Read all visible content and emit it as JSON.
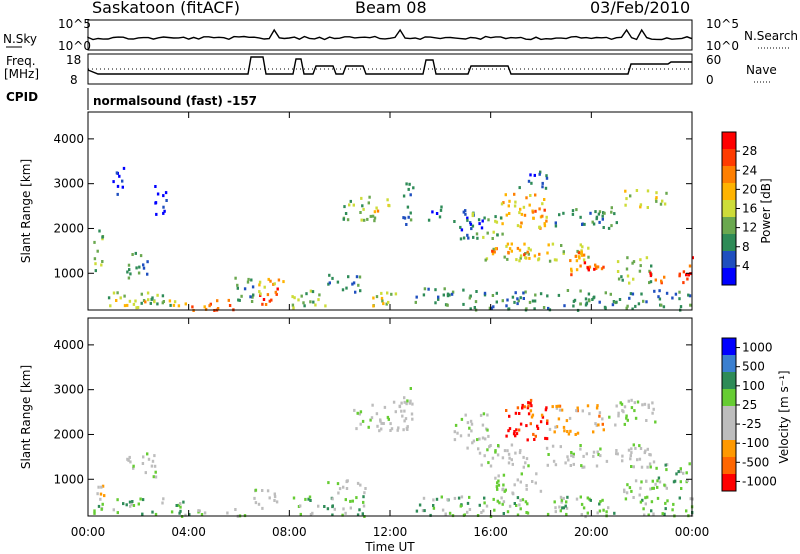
{
  "header": {
    "station": "Saskatoon (fitACF)",
    "beam": "Beam 08",
    "date": "03/Feb/2010"
  },
  "panels": {
    "nsky": {
      "left_label": "N.Sky",
      "right_label": "N.Search",
      "left_ticks": [
        "10^5",
        "10^0"
      ],
      "right_ticks": [
        "10^5",
        "10^0"
      ]
    },
    "freq": {
      "left_label_line1": "Freq.",
      "left_label_line2": "[MHz]",
      "right_label": "Nave",
      "left_ticks": [
        "18",
        "8"
      ],
      "right_ticks": [
        "60",
        "0"
      ]
    },
    "cpid": {
      "label": "CPID",
      "value": "normalsound (fast) -157"
    }
  },
  "colors": {
    "power_scale": [
      "#0000ff",
      "#1f4fbf",
      "#2e8b57",
      "#6aa84f",
      "#cddc39",
      "#ffb300",
      "#ff7f00",
      "#ff3b00",
      "#ff0000"
    ],
    "velocity_scale": [
      "#0000ff",
      "#3a7fd0",
      "#2e8b57",
      "#66cc33",
      "#bdbdbd",
      "#bdbdbd",
      "#ff9900",
      "#ff6600",
      "#ff0000"
    ]
  },
  "chart_data": [
    {
      "type": "heatmap",
      "name": "power",
      "xlabel": "Time UT",
      "ylabel": "Slant Range [km]",
      "x_ticks": [
        "00:00",
        "04:00",
        "08:00",
        "12:00",
        "16:00",
        "20:00",
        "00:00"
      ],
      "xlim": [
        0,
        24
      ],
      "y_ticks": [
        1000,
        2000,
        3000,
        4000
      ],
      "ylim": [
        180,
        4600
      ],
      "colorbar": {
        "label": "Power [dB]",
        "ticks": [
          4,
          8,
          12,
          16,
          20,
          24,
          28
        ]
      },
      "regions": [
        {
          "t0": 0.2,
          "t1": 0.6,
          "r0": 1000,
          "r1": 2100,
          "color": 3
        },
        {
          "t0": 0.7,
          "t1": 3.5,
          "r0": 250,
          "r1": 600,
          "color": 3
        },
        {
          "t0": 1.0,
          "t1": 3.8,
          "r0": 300,
          "r1": 450,
          "color": 5
        },
        {
          "t0": 1.5,
          "t1": 2.5,
          "r0": 900,
          "r1": 1500,
          "color": 2
        },
        {
          "t0": 0.9,
          "t1": 1.4,
          "r0": 2700,
          "r1": 3400,
          "color": 0
        },
        {
          "t0": 2.5,
          "t1": 3.1,
          "r0": 2300,
          "r1": 3000,
          "color": 0
        },
        {
          "t0": 3.8,
          "t1": 6.0,
          "r0": 200,
          "r1": 450,
          "color": 6
        },
        {
          "t0": 5.8,
          "t1": 6.6,
          "r0": 300,
          "r1": 1000,
          "color": 2
        },
        {
          "t0": 6.7,
          "t1": 7.5,
          "r0": 200,
          "r1": 700,
          "color": 7
        },
        {
          "t0": 6.3,
          "t1": 7.0,
          "r0": 500,
          "r1": 850,
          "color": 4
        },
        {
          "t0": 7.0,
          "t1": 7.8,
          "r0": 700,
          "r1": 900,
          "color": 5
        },
        {
          "t0": 8.0,
          "t1": 9.5,
          "r0": 200,
          "r1": 650,
          "color": 3
        },
        {
          "t0": 9.5,
          "t1": 11.0,
          "r0": 600,
          "r1": 1000,
          "color": 2
        },
        {
          "t0": 10.1,
          "t1": 11.5,
          "r0": 2200,
          "r1": 2800,
          "color": 3
        },
        {
          "t0": 11.3,
          "t1": 12.0,
          "r0": 2400,
          "r1": 2700,
          "color": 5
        },
        {
          "t0": 11.0,
          "t1": 12.5,
          "r0": 250,
          "r1": 600,
          "color": 4
        },
        {
          "t0": 12.4,
          "t1": 12.9,
          "r0": 2100,
          "r1": 3100,
          "color": 2
        },
        {
          "t0": 13.5,
          "t1": 14.0,
          "r0": 2200,
          "r1": 2600,
          "color": 1
        },
        {
          "t0": 12.9,
          "t1": 15.0,
          "r0": 300,
          "r1": 700,
          "color": 2
        },
        {
          "t0": 14.5,
          "t1": 15.7,
          "r0": 1800,
          "r1": 2500,
          "color": 1
        },
        {
          "t0": 15.5,
          "t1": 20.0,
          "r0": 1300,
          "r1": 1700,
          "color": 4
        },
        {
          "t0": 16.0,
          "t1": 18.5,
          "r0": 1400,
          "r1": 1600,
          "color": 6
        },
        {
          "t0": 15.2,
          "t1": 16.5,
          "r0": 1800,
          "r1": 2400,
          "color": 3
        },
        {
          "t0": 16.4,
          "t1": 18.2,
          "r0": 2000,
          "r1": 2800,
          "color": 5
        },
        {
          "t0": 17.3,
          "t1": 18.2,
          "r0": 2300,
          "r1": 2500,
          "color": 6
        },
        {
          "t0": 18.5,
          "t1": 21.0,
          "r0": 2000,
          "r1": 2500,
          "color": 2
        },
        {
          "t0": 19.0,
          "t1": 20.5,
          "r0": 1000,
          "r1": 1500,
          "color": 6
        },
        {
          "t0": 19.6,
          "t1": 20.3,
          "r0": 1100,
          "r1": 1300,
          "color": 7
        },
        {
          "t0": 21.0,
          "t1": 22.4,
          "r0": 800,
          "r1": 1400,
          "color": 3
        },
        {
          "t0": 22.2,
          "t1": 22.9,
          "r0": 800,
          "r1": 1100,
          "color": 7
        },
        {
          "t0": 21.3,
          "t1": 23.0,
          "r0": 2500,
          "r1": 2900,
          "color": 4
        },
        {
          "t0": 23.4,
          "t1": 24.0,
          "r0": 800,
          "r1": 1500,
          "color": 7
        },
        {
          "t0": 15.0,
          "t1": 24.0,
          "r0": 200,
          "r1": 650,
          "color": 2
        },
        {
          "t0": 17.0,
          "t1": 18.2,
          "r0": 2900,
          "r1": 3300,
          "color": 1
        }
      ]
    },
    {
      "type": "heatmap",
      "name": "velocity",
      "xlabel": "Time UT",
      "ylabel": "Slant Range [km]",
      "x_ticks": [
        "00:00",
        "04:00",
        "08:00",
        "12:00",
        "16:00",
        "20:00",
        "00:00"
      ],
      "xlim": [
        0,
        24
      ],
      "y_ticks": [
        1000,
        2000,
        3000,
        4000
      ],
      "ylim": [
        180,
        4600
      ],
      "colorbar": {
        "label": "Velocity [m s⁻¹]",
        "ticks": [
          1000,
          500,
          100,
          25,
          -25,
          -100,
          -500,
          -1000
        ]
      },
      "regions": [
        {
          "t0": 0.2,
          "t1": 3.8,
          "r0": 250,
          "r1": 600,
          "color": 3
        },
        {
          "t0": 0.3,
          "t1": 0.6,
          "r0": 650,
          "r1": 900,
          "color": 6
        },
        {
          "t0": 1.5,
          "t1": 2.7,
          "r0": 1000,
          "r1": 1600,
          "color": 4
        },
        {
          "t0": 3.5,
          "t1": 6.5,
          "r0": 200,
          "r1": 400,
          "color": 3
        },
        {
          "t0": 6.5,
          "t1": 7.5,
          "r0": 300,
          "r1": 800,
          "color": 4
        },
        {
          "t0": 8.0,
          "t1": 11.0,
          "r0": 200,
          "r1": 650,
          "color": 3
        },
        {
          "t0": 9.5,
          "t1": 11.0,
          "r0": 650,
          "r1": 1000,
          "color": 4
        },
        {
          "t0": 10.3,
          "t1": 12.9,
          "r0": 2100,
          "r1": 2800,
          "color": 4
        },
        {
          "t0": 12.3,
          "t1": 12.8,
          "r0": 2600,
          "r1": 3100,
          "color": 4
        },
        {
          "t0": 14.5,
          "t1": 16.0,
          "r0": 1700,
          "r1": 2500,
          "color": 4
        },
        {
          "t0": 15.5,
          "t1": 22.5,
          "r0": 1300,
          "r1": 1800,
          "color": 4
        },
        {
          "t0": 16.5,
          "t1": 18.3,
          "r0": 1900,
          "r1": 2700,
          "color": 8
        },
        {
          "t0": 17.3,
          "t1": 18.2,
          "r0": 2400,
          "r1": 2800,
          "color": 7
        },
        {
          "t0": 18.3,
          "t1": 20.5,
          "r0": 2000,
          "r1": 2700,
          "color": 6
        },
        {
          "t0": 20.5,
          "t1": 22.5,
          "r0": 2200,
          "r1": 2800,
          "color": 4
        },
        {
          "t0": 22.5,
          "t1": 24.0,
          "r0": 800,
          "r1": 1400,
          "color": 3
        },
        {
          "t0": 21.0,
          "t1": 23.0,
          "r0": 600,
          "r1": 1000,
          "color": 4
        },
        {
          "t0": 13.0,
          "t1": 24.0,
          "r0": 200,
          "r1": 650,
          "color": 3
        },
        {
          "t0": 16.0,
          "t1": 18.0,
          "r0": 700,
          "r1": 1200,
          "color": 4
        }
      ]
    }
  ]
}
